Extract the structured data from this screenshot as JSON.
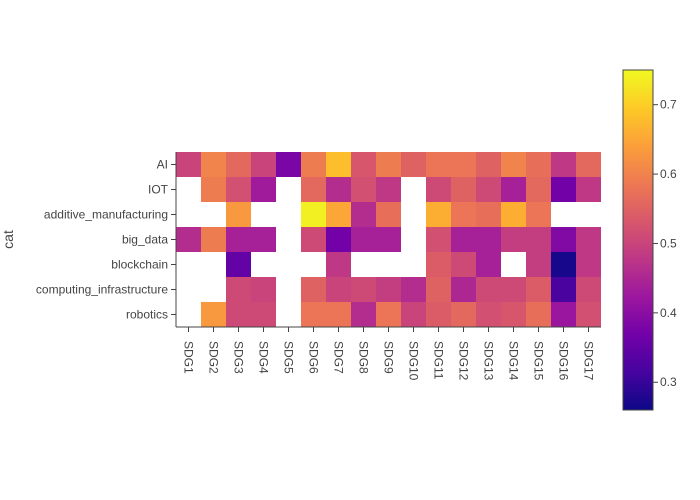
{
  "chart_data": {
    "type": "heatmap",
    "title": "",
    "xlabel": "",
    "ylabel": "cat",
    "x": [
      "SDG1",
      "SDG2",
      "SDG3",
      "SDG4",
      "SDG5",
      "SDG6",
      "SDG7",
      "SDG8",
      "SDG9",
      "SDG10",
      "SDG11",
      "SDG12",
      "SDG13",
      "SDG14",
      "SDG15",
      "SDG16",
      "SDG17"
    ],
    "y": [
      "AI",
      "IOT",
      "additive_manufacturing",
      "big_data",
      "blockchain",
      "computing_infrastructure",
      "robotics"
    ],
    "z": [
      [
        0.5,
        0.6,
        0.56,
        0.5,
        0.38,
        0.59,
        0.68,
        0.53,
        0.59,
        0.55,
        0.58,
        0.58,
        0.55,
        0.6,
        0.57,
        0.48,
        0.56
      ],
      [
        null,
        0.59,
        0.52,
        0.43,
        null,
        0.56,
        0.46,
        0.52,
        0.48,
        null,
        0.51,
        0.55,
        0.51,
        0.44,
        0.56,
        0.37,
        0.48
      ],
      [
        null,
        null,
        0.63,
        null,
        null,
        0.74,
        0.65,
        0.46,
        0.57,
        null,
        0.66,
        0.58,
        0.57,
        0.66,
        0.58,
        null,
        null
      ],
      [
        0.46,
        0.59,
        0.44,
        0.44,
        null,
        0.51,
        0.37,
        0.44,
        0.44,
        null,
        0.52,
        0.44,
        0.44,
        0.49,
        0.49,
        0.39,
        0.48
      ],
      [
        null,
        null,
        0.35,
        null,
        null,
        null,
        0.48,
        null,
        null,
        null,
        0.54,
        0.51,
        0.44,
        null,
        0.49,
        0.27,
        0.48
      ],
      [
        null,
        null,
        0.51,
        0.5,
        null,
        0.55,
        0.5,
        0.51,
        0.49,
        0.46,
        0.55,
        0.45,
        0.51,
        0.51,
        0.54,
        0.32,
        0.51
      ],
      [
        null,
        0.63,
        0.51,
        0.51,
        null,
        0.58,
        0.58,
        0.46,
        0.58,
        0.5,
        0.54,
        0.56,
        0.52,
        0.53,
        0.57,
        0.42,
        0.52
      ]
    ],
    "colorscale": "plasma",
    "zrange": [
      0.26,
      0.75
    ],
    "colorbar_ticks": [
      "0.3",
      "0.4",
      "0.5",
      "0.6",
      "0.7"
    ],
    "colorbar_tick_values": [
      0.3,
      0.4,
      0.5,
      0.6,
      0.7
    ],
    "missing_color": "#ffffff",
    "legend": "none"
  }
}
